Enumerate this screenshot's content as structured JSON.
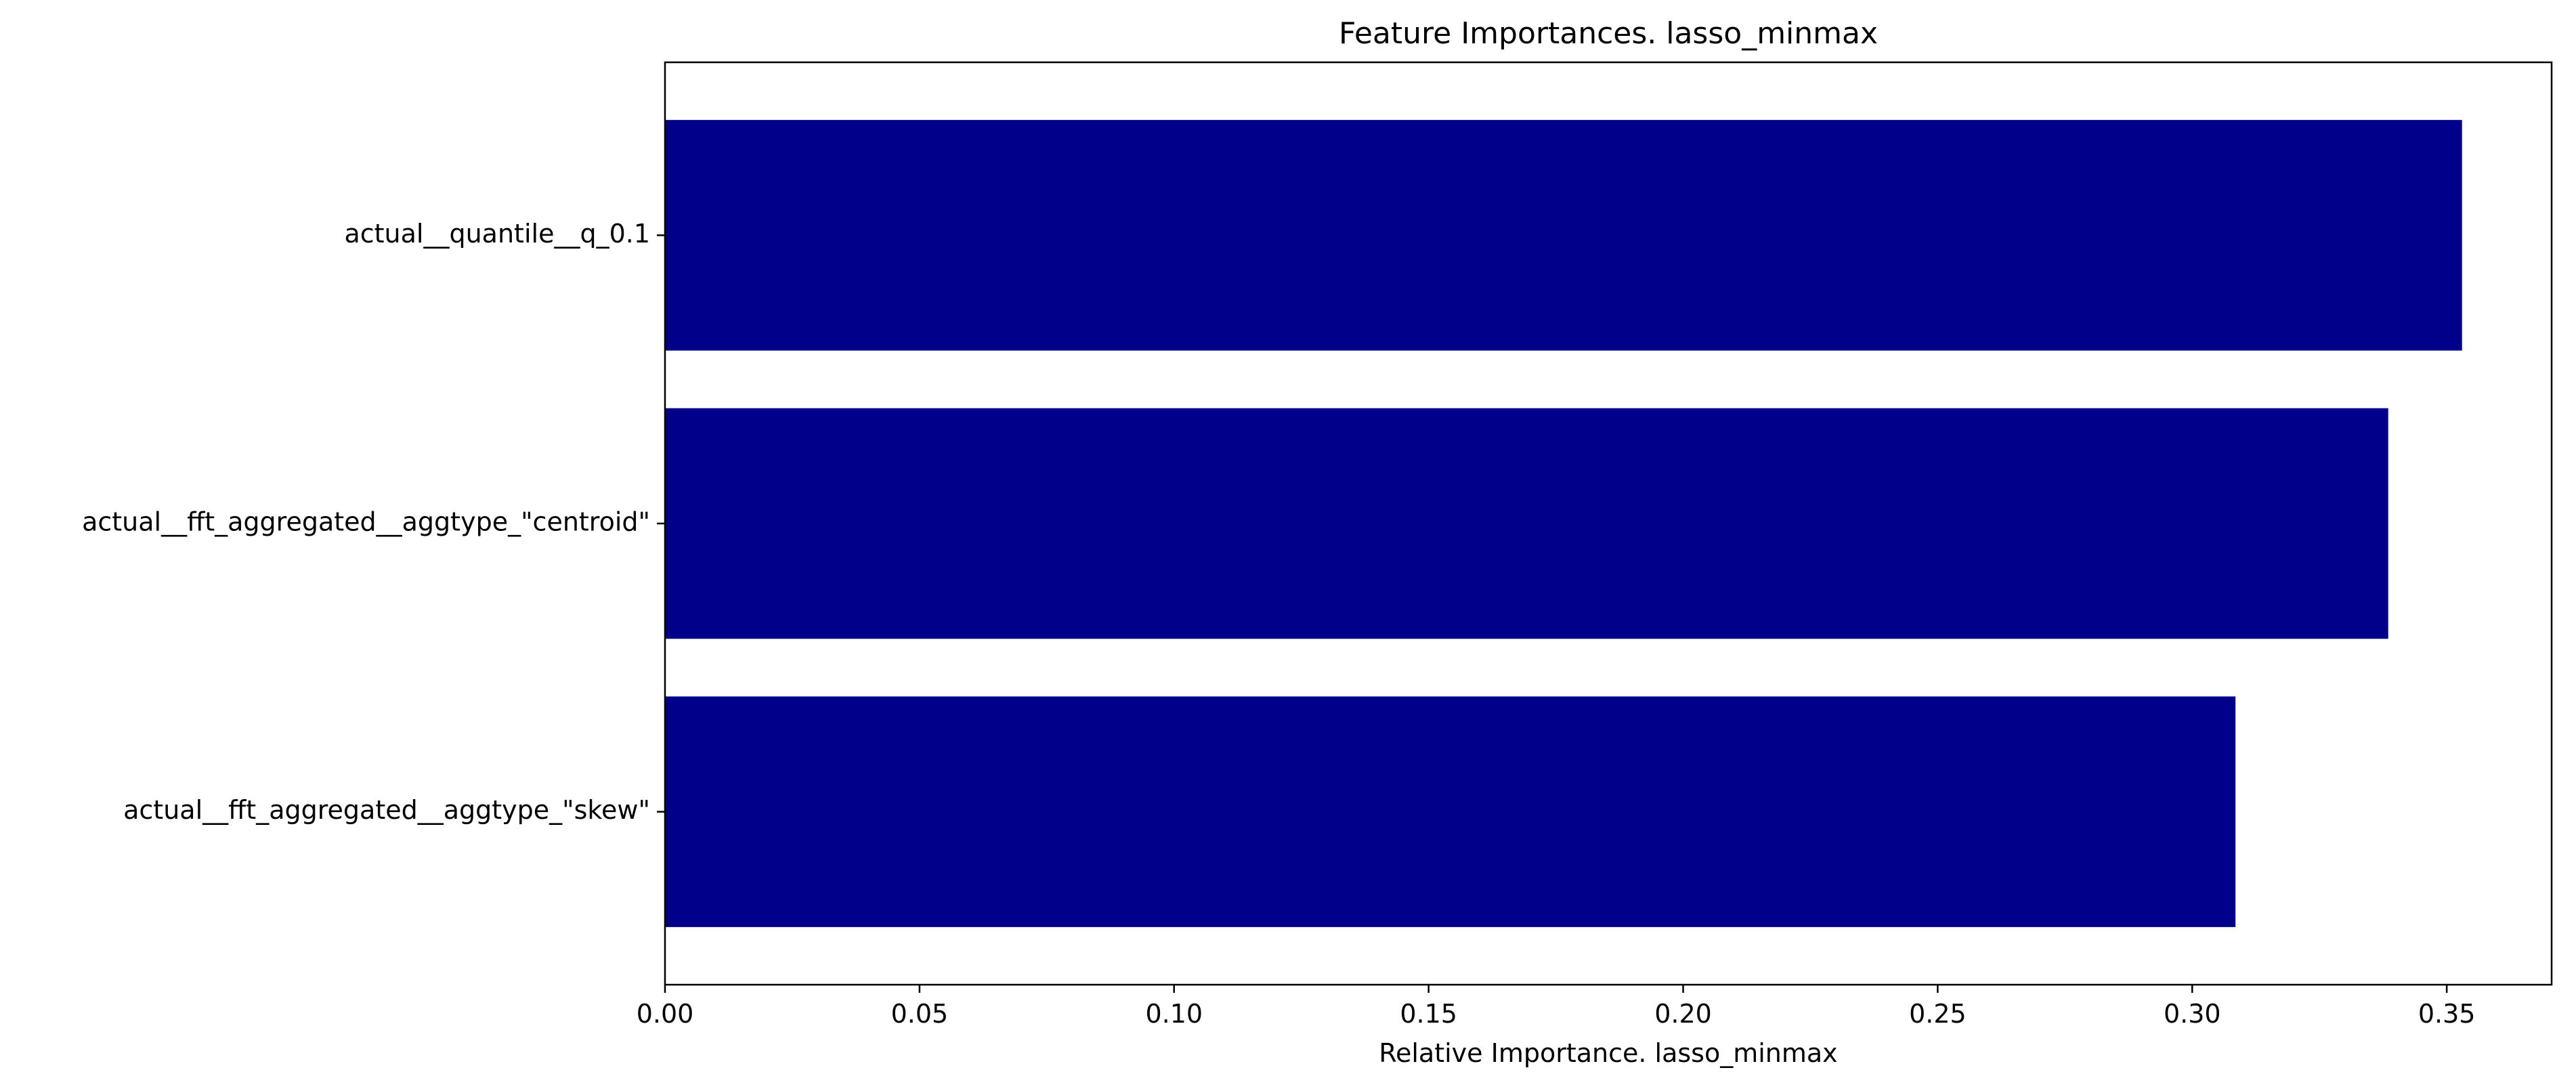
{
  "chart_data": {
    "type": "bar",
    "orientation": "horizontal",
    "title": "Feature Importances. lasso_minmax",
    "xlabel": "Relative Importance. lasso_minmax",
    "ylabel": "",
    "categories": [
      "actual__quantile__q_0.1",
      "actual__fft_aggregated__aggtype_\"centroid\"",
      "actual__fft_aggregated__aggtype_\"skew\""
    ],
    "values": [
      0.353,
      0.3385,
      0.3085
    ],
    "xlim": [
      0,
      0.3706
    ],
    "xticks": [
      0.0,
      0.05,
      0.1,
      0.15,
      0.2,
      0.25,
      0.3,
      0.35
    ],
    "xtick_labels": [
      "0.00",
      "0.05",
      "0.10",
      "0.15",
      "0.20",
      "0.25",
      "0.30",
      "0.35"
    ],
    "bar_color": "#00008b",
    "grid": false,
    "legend": "none"
  }
}
